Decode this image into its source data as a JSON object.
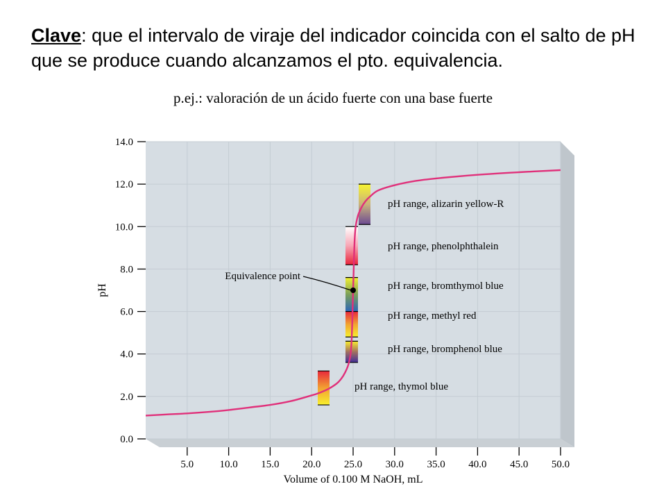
{
  "heading": {
    "key": "Clave",
    "text": ": que el intervalo de viraje del indicador coincida con el salto de pH que se produce cuando alcanzamos el pto. equivalencia."
  },
  "subheading": "p.ej.: valoración de un ácido fuerte con una base fuerte",
  "chart_data": {
    "type": "line",
    "title": "",
    "xlabel": "Volume of 0.100 M NaOH, mL",
    "ylabel": "pH",
    "xlim": [
      0,
      50
    ],
    "ylim": [
      0,
      14
    ],
    "x_ticks": [
      5,
      10,
      15,
      20,
      25,
      30,
      35,
      40,
      45,
      50
    ],
    "x_tick_labels": [
      "5.0",
      "10.0",
      "15.0",
      "20.0",
      "25.0",
      "30.0",
      "35.0",
      "40.0",
      "45.0",
      "50.0"
    ],
    "y_ticks": [
      0,
      2,
      4,
      6,
      8,
      10,
      12,
      14
    ],
    "y_tick_labels": [
      "0.0",
      "2.0",
      "4.0",
      "6.0",
      "8.0",
      "10.0",
      "12.0",
      "14.0"
    ],
    "grid": true,
    "series": [
      {
        "color": "#e0307a",
        "x": [
          0,
          2.5,
          5,
          7.5,
          10,
          12.5,
          15,
          17.5,
          20,
          21,
          22,
          23,
          23.5,
          24,
          24.5,
          24.8,
          25,
          25.2,
          25.5,
          26,
          26.5,
          27,
          28,
          30,
          32.5,
          35,
          40,
          45,
          50
        ],
        "y": [
          1.1,
          1.15,
          1.2,
          1.27,
          1.36,
          1.48,
          1.6,
          1.78,
          2.05,
          2.18,
          2.35,
          2.6,
          2.8,
          3.1,
          3.6,
          4.5,
          7.0,
          9.5,
          10.4,
          10.9,
          11.2,
          11.4,
          11.7,
          11.95,
          12.15,
          12.27,
          12.44,
          12.56,
          12.66
        ]
      }
    ],
    "indicators": [
      {
        "label": "pH range, alizarin yellow-R",
        "ph_low": 10.1,
        "ph_high": 12.0,
        "colors": [
          "#f7f430",
          "#c9b27c",
          "#6c4a92"
        ]
      },
      {
        "label": "pH range, phenolphthalein",
        "ph_low": 8.2,
        "ph_high": 10.0,
        "colors": [
          "#ffffff",
          "#f7a6b5",
          "#e8243b"
        ]
      },
      {
        "label": "pH range, bromthymol blue",
        "ph_low": 6.0,
        "ph_high": 7.6,
        "colors": [
          "#f2f032",
          "#7a9f5a",
          "#2c66b8"
        ]
      },
      {
        "label": "pH range, methyl red",
        "ph_low": 4.8,
        "ph_high": 6.0,
        "colors": [
          "#e8283c",
          "#f1a331",
          "#f6f02c"
        ]
      },
      {
        "label": "pH range, bromphenol blue",
        "ph_low": 3.6,
        "ph_high": 4.6,
        "colors": [
          "#f7ee2e",
          "#a27060",
          "#433098"
        ]
      },
      {
        "label": "pH range, thymol blue",
        "ph_low": 1.6,
        "ph_high": 3.2,
        "colors": [
          "#e8283c",
          "#f2a131",
          "#f7f02e"
        ]
      }
    ],
    "annotation": {
      "label": "Equivalence point",
      "x": 25,
      "y": 7.0
    }
  }
}
